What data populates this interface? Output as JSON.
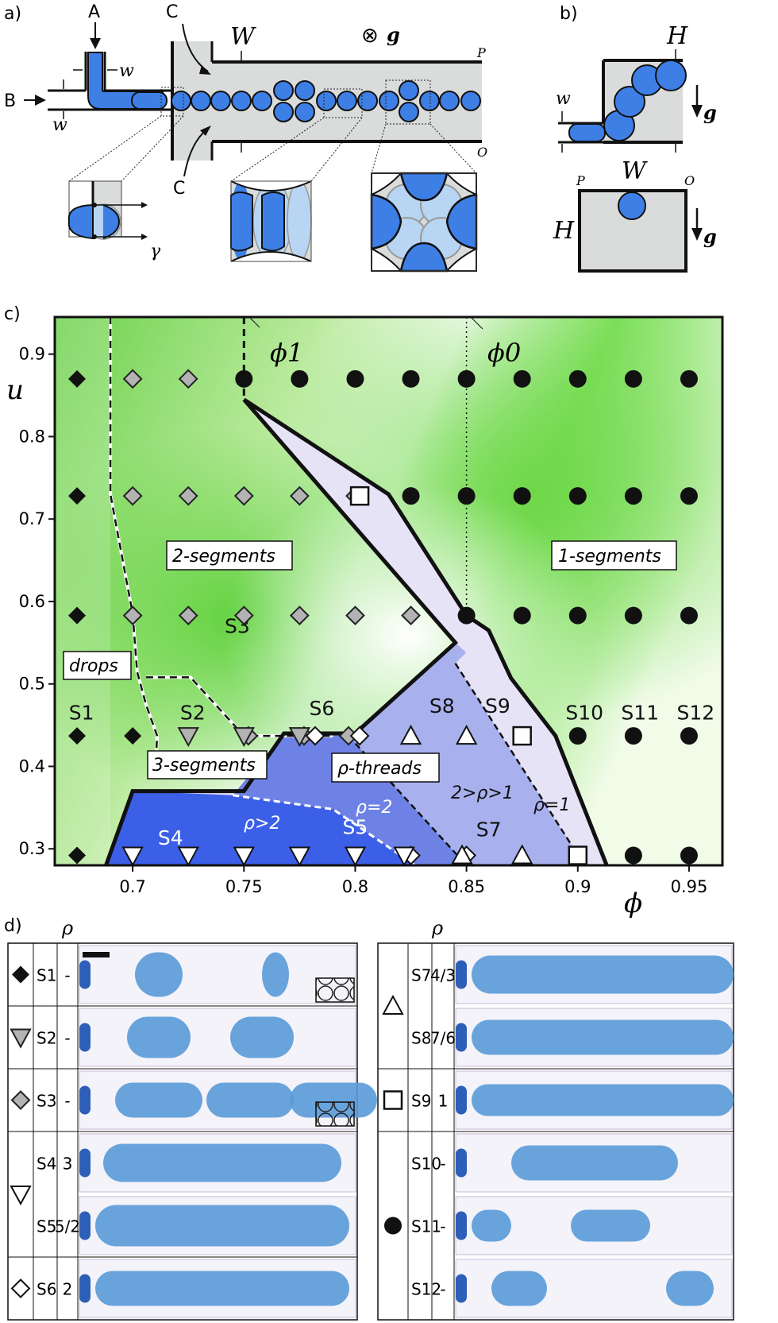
{
  "panels": {
    "a": {
      "label": "a)",
      "inlet_a": "A",
      "inlet_b": "B",
      "constriction_c": "C",
      "width_W": "W",
      "width_w": "w",
      "gravity_g": "g",
      "gravity_symbol": "⊗",
      "corner_P": "P",
      "corner_O": "O",
      "tension_gamma": "γ"
    },
    "b": {
      "label": "b)",
      "height_H": "H",
      "width_w": "w",
      "width_W": "W",
      "gravity_g": "g",
      "corner_P": "P",
      "corner_O": "O"
    },
    "c": {
      "label": "c)",
      "xlabel": "ϕ",
      "ylabel": "u",
      "xticks": [
        "0.7",
        "0.75",
        "0.8",
        "0.85",
        "0.9",
        "0.95"
      ],
      "yticks": [
        "0.3",
        "0.4",
        "0.5",
        "0.6",
        "0.7",
        "0.8",
        "0.9"
      ],
      "phi1_label": "ϕ1",
      "phi0_label": "ϕ0",
      "region_labels": {
        "drops": "drops",
        "two_segments": "2-segments",
        "one_segments": "1-segments",
        "three_segments": "3-segments",
        "rho_threads": "ρ-threads",
        "rho_gt_2": "ρ>2",
        "rho_eq_2": "ρ=2",
        "rho_between": "2>ρ>1",
        "rho_eq_1": "ρ=1"
      },
      "state_labels": [
        "S1",
        "S2",
        "S3",
        "S4",
        "S5",
        "S6",
        "S7",
        "S8",
        "S9",
        "S10",
        "S11",
        "S12"
      ]
    },
    "d": {
      "label": "d)",
      "rho_header": "ρ",
      "left_rows": [
        {
          "state": "S1",
          "rho": "-",
          "symbol": "filled-diamond"
        },
        {
          "state": "S2",
          "rho": "-",
          "symbol": "gray-down-triangle"
        },
        {
          "state": "S3",
          "rho": "-",
          "symbol": "gray-diamond"
        },
        {
          "state": "S4",
          "rho": "3",
          "symbol": "open-down-triangle"
        },
        {
          "state": "S5",
          "rho": "5/2",
          "symbol": "open-down-triangle"
        },
        {
          "state": "S6",
          "rho": "2",
          "symbol": "open-diamond"
        }
      ],
      "right_rows": [
        {
          "state": "S7",
          "rho": "4/3",
          "symbol": "open-up-triangle"
        },
        {
          "state": "S8",
          "rho": "7/6",
          "symbol": "open-up-triangle"
        },
        {
          "state": "S9",
          "rho": "1",
          "symbol": "open-square"
        },
        {
          "state": "S10",
          "rho": "-",
          "symbol": "filled-circle"
        },
        {
          "state": "S11",
          "rho": "-",
          "symbol": "filled-circle"
        },
        {
          "state": "S12",
          "rho": "-",
          "symbol": "filled-circle"
        }
      ]
    }
  },
  "chart_data": {
    "type": "scatter",
    "xlabel": "ϕ",
    "ylabel": "u",
    "xlim": [
      0.665,
      0.965
    ],
    "ylim": [
      0.28,
      0.945
    ],
    "grid": false,
    "colors": {
      "green": "#5fd13c",
      "dark_blue": "#3c5fe8",
      "mid_blue": "#6e82e6",
      "light_blue": "#a8b1ee",
      "lavender": "#e6e3f7",
      "gray_marker": "#b3b3b3"
    },
    "series": [
      {
        "name": "filled-diamond",
        "points": [
          [
            0.675,
            0.87
          ],
          [
            0.675,
            0.728
          ],
          [
            0.675,
            0.583
          ],
          [
            0.675,
            0.437
          ],
          [
            0.7,
            0.437
          ],
          [
            0.675,
            0.292
          ]
        ]
      },
      {
        "name": "gray-diamond",
        "points": [
          [
            0.7,
            0.87
          ],
          [
            0.725,
            0.87
          ],
          [
            0.7,
            0.728
          ],
          [
            0.725,
            0.728
          ],
          [
            0.75,
            0.728
          ],
          [
            0.775,
            0.728
          ],
          [
            0.8,
            0.728
          ],
          [
            0.7,
            0.583
          ],
          [
            0.725,
            0.583
          ],
          [
            0.75,
            0.583
          ],
          [
            0.775,
            0.583
          ],
          [
            0.8,
            0.583
          ],
          [
            0.825,
            0.583
          ],
          [
            0.752,
            0.437
          ],
          [
            0.777,
            0.437
          ],
          [
            0.797,
            0.437
          ]
        ]
      },
      {
        "name": "gray-down-triangle",
        "points": [
          [
            0.725,
            0.437
          ],
          [
            0.75,
            0.437
          ],
          [
            0.775,
            0.437
          ]
        ]
      },
      {
        "name": "open-diamond",
        "points": [
          [
            0.782,
            0.437
          ],
          [
            0.802,
            0.437
          ],
          [
            0.825,
            0.292
          ],
          [
            0.85,
            0.292
          ]
        ]
      },
      {
        "name": "open-down-triangle",
        "points": [
          [
            0.7,
            0.292
          ],
          [
            0.725,
            0.292
          ],
          [
            0.75,
            0.292
          ],
          [
            0.775,
            0.292
          ],
          [
            0.8,
            0.292
          ],
          [
            0.822,
            0.292
          ]
        ]
      },
      {
        "name": "open-up-triangle",
        "points": [
          [
            0.825,
            0.437
          ],
          [
            0.85,
            0.437
          ],
          [
            0.848,
            0.292
          ],
          [
            0.875,
            0.292
          ]
        ]
      },
      {
        "name": "open-square",
        "points": [
          [
            0.802,
            0.728
          ],
          [
            0.875,
            0.437
          ],
          [
            0.9,
            0.292
          ]
        ]
      },
      {
        "name": "filled-circle",
        "points": [
          [
            0.75,
            0.87
          ],
          [
            0.775,
            0.87
          ],
          [
            0.8,
            0.87
          ],
          [
            0.825,
            0.87
          ],
          [
            0.85,
            0.87
          ],
          [
            0.875,
            0.87
          ],
          [
            0.9,
            0.87
          ],
          [
            0.925,
            0.87
          ],
          [
            0.95,
            0.87
          ],
          [
            0.825,
            0.728
          ],
          [
            0.85,
            0.728
          ],
          [
            0.875,
            0.728
          ],
          [
            0.9,
            0.728
          ],
          [
            0.925,
            0.728
          ],
          [
            0.95,
            0.728
          ],
          [
            0.85,
            0.583
          ],
          [
            0.875,
            0.583
          ],
          [
            0.9,
            0.583
          ],
          [
            0.925,
            0.583
          ],
          [
            0.95,
            0.583
          ],
          [
            0.9,
            0.437
          ],
          [
            0.925,
            0.437
          ],
          [
            0.95,
            0.437
          ],
          [
            0.925,
            0.292
          ],
          [
            0.95,
            0.292
          ]
        ]
      }
    ],
    "boundaries": {
      "left_dashed": [
        [
          0.69,
          0.945
        ],
        [
          0.69,
          0.73
        ],
        [
          0.7,
          0.585
        ],
        [
          0.702,
          0.515
        ],
        [
          0.706,
          0.475
        ],
        [
          0.711,
          0.437
        ],
        [
          0.71,
          0.388
        ]
      ],
      "three_seg_dashed": [
        [
          0.706,
          0.508
        ],
        [
          0.726,
          0.508
        ],
        [
          0.75,
          0.437
        ],
        [
          0.79,
          0.437
        ]
      ],
      "phi1_dashed": [
        [
          0.75,
          0.945
        ],
        [
          0.75,
          0.845
        ]
      ],
      "phi0_dotted": [
        [
          0.85,
          0.945
        ],
        [
          0.85,
          0.583
        ]
      ],
      "thick_main": [
        [
          0.75,
          0.845
        ],
        [
          0.815,
          0.73
        ],
        [
          0.85,
          0.583
        ],
        [
          0.86,
          0.565
        ],
        [
          0.87,
          0.507
        ],
        [
          0.89,
          0.437
        ],
        [
          0.913,
          0.28
        ]
      ],
      "thick_inner": [
        [
          0.75,
          0.845
        ],
        [
          0.845,
          0.55
        ],
        [
          0.8,
          0.44
        ],
        [
          0.768,
          0.44
        ],
        [
          0.75,
          0.37
        ],
        [
          0.7,
          0.37
        ],
        [
          0.688,
          0.28
        ]
      ],
      "dashed_rho_2": [
        [
          0.745,
          0.365
        ],
        [
          0.79,
          0.348
        ],
        [
          0.827,
          0.28
        ]
      ],
      "dashed_rho_mid": [
        [
          0.797,
          0.437
        ],
        [
          0.85,
          0.28
        ]
      ],
      "dashed_rho_1": [
        [
          0.845,
          0.525
        ],
        [
          0.903,
          0.28
        ]
      ]
    }
  }
}
